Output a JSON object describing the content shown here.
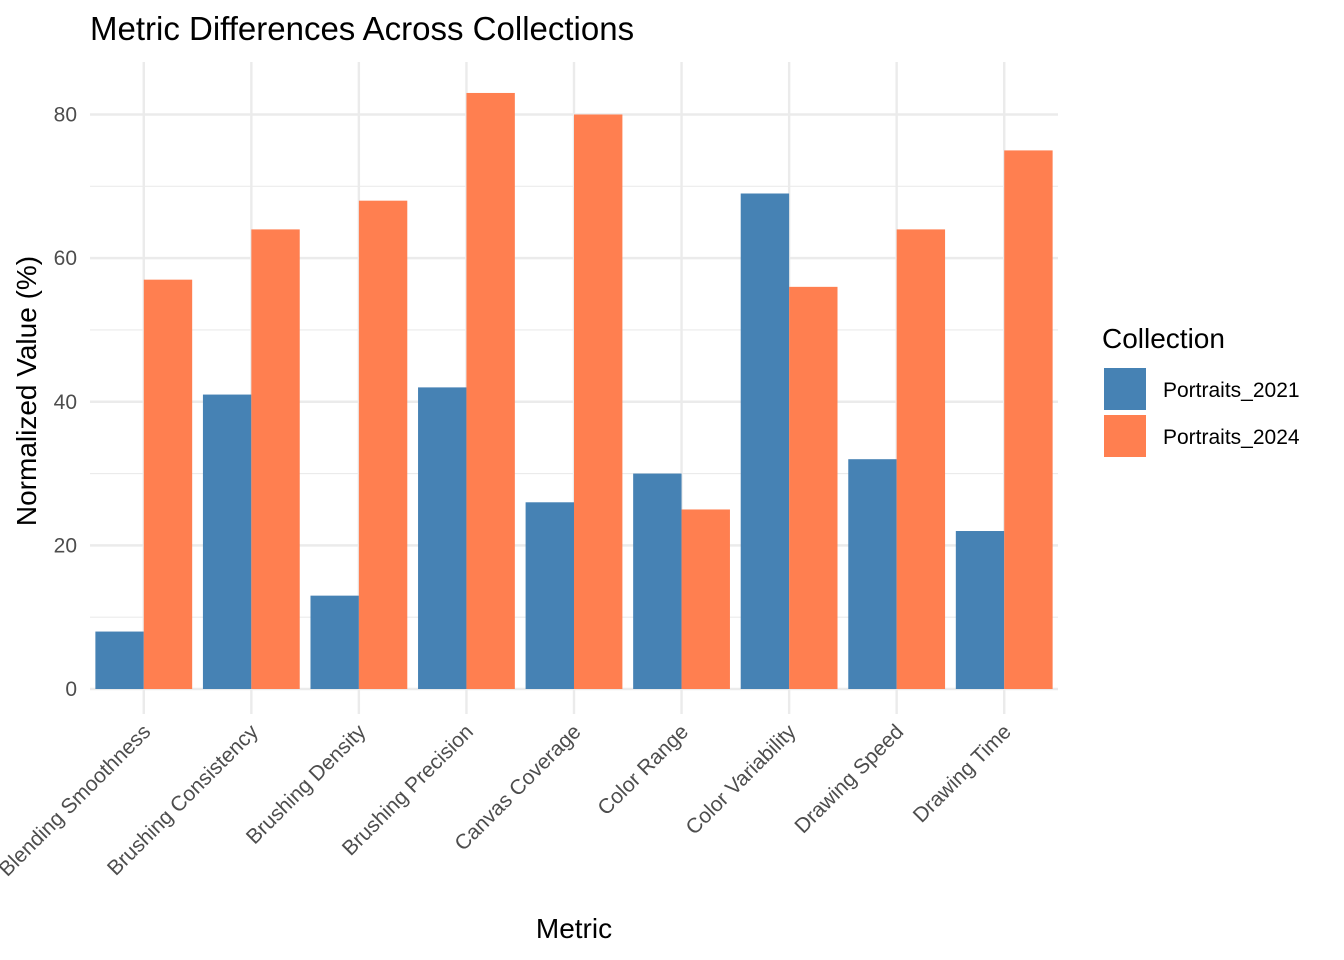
{
  "chart_data": {
    "type": "bar",
    "title": "Metric Differences Across Collections",
    "xlabel": "Metric",
    "ylabel": "Normalized Value (%)",
    "ylim": [
      0,
      87
    ],
    "yticks": [
      0,
      20,
      40,
      60,
      80
    ],
    "grid": true,
    "legend_position": "right",
    "legend_title": "Collection",
    "categories": [
      "Blending Smoothness",
      "Brushing Consistency",
      "Brushing Density",
      "Brushing Precision",
      "Canvas Coverage",
      "Color Range",
      "Color Variability",
      "Drawing Speed",
      "Drawing Time"
    ],
    "series": [
      {
        "name": "Portraits_2021",
        "color": "#4682b4",
        "values": [
          8,
          41,
          13,
          42,
          26,
          30,
          69,
          32,
          22
        ]
      },
      {
        "name": "Portraits_2024",
        "color": "#ff7f50",
        "values": [
          57,
          64,
          68,
          83,
          80,
          25,
          56,
          64,
          75
        ]
      }
    ]
  }
}
